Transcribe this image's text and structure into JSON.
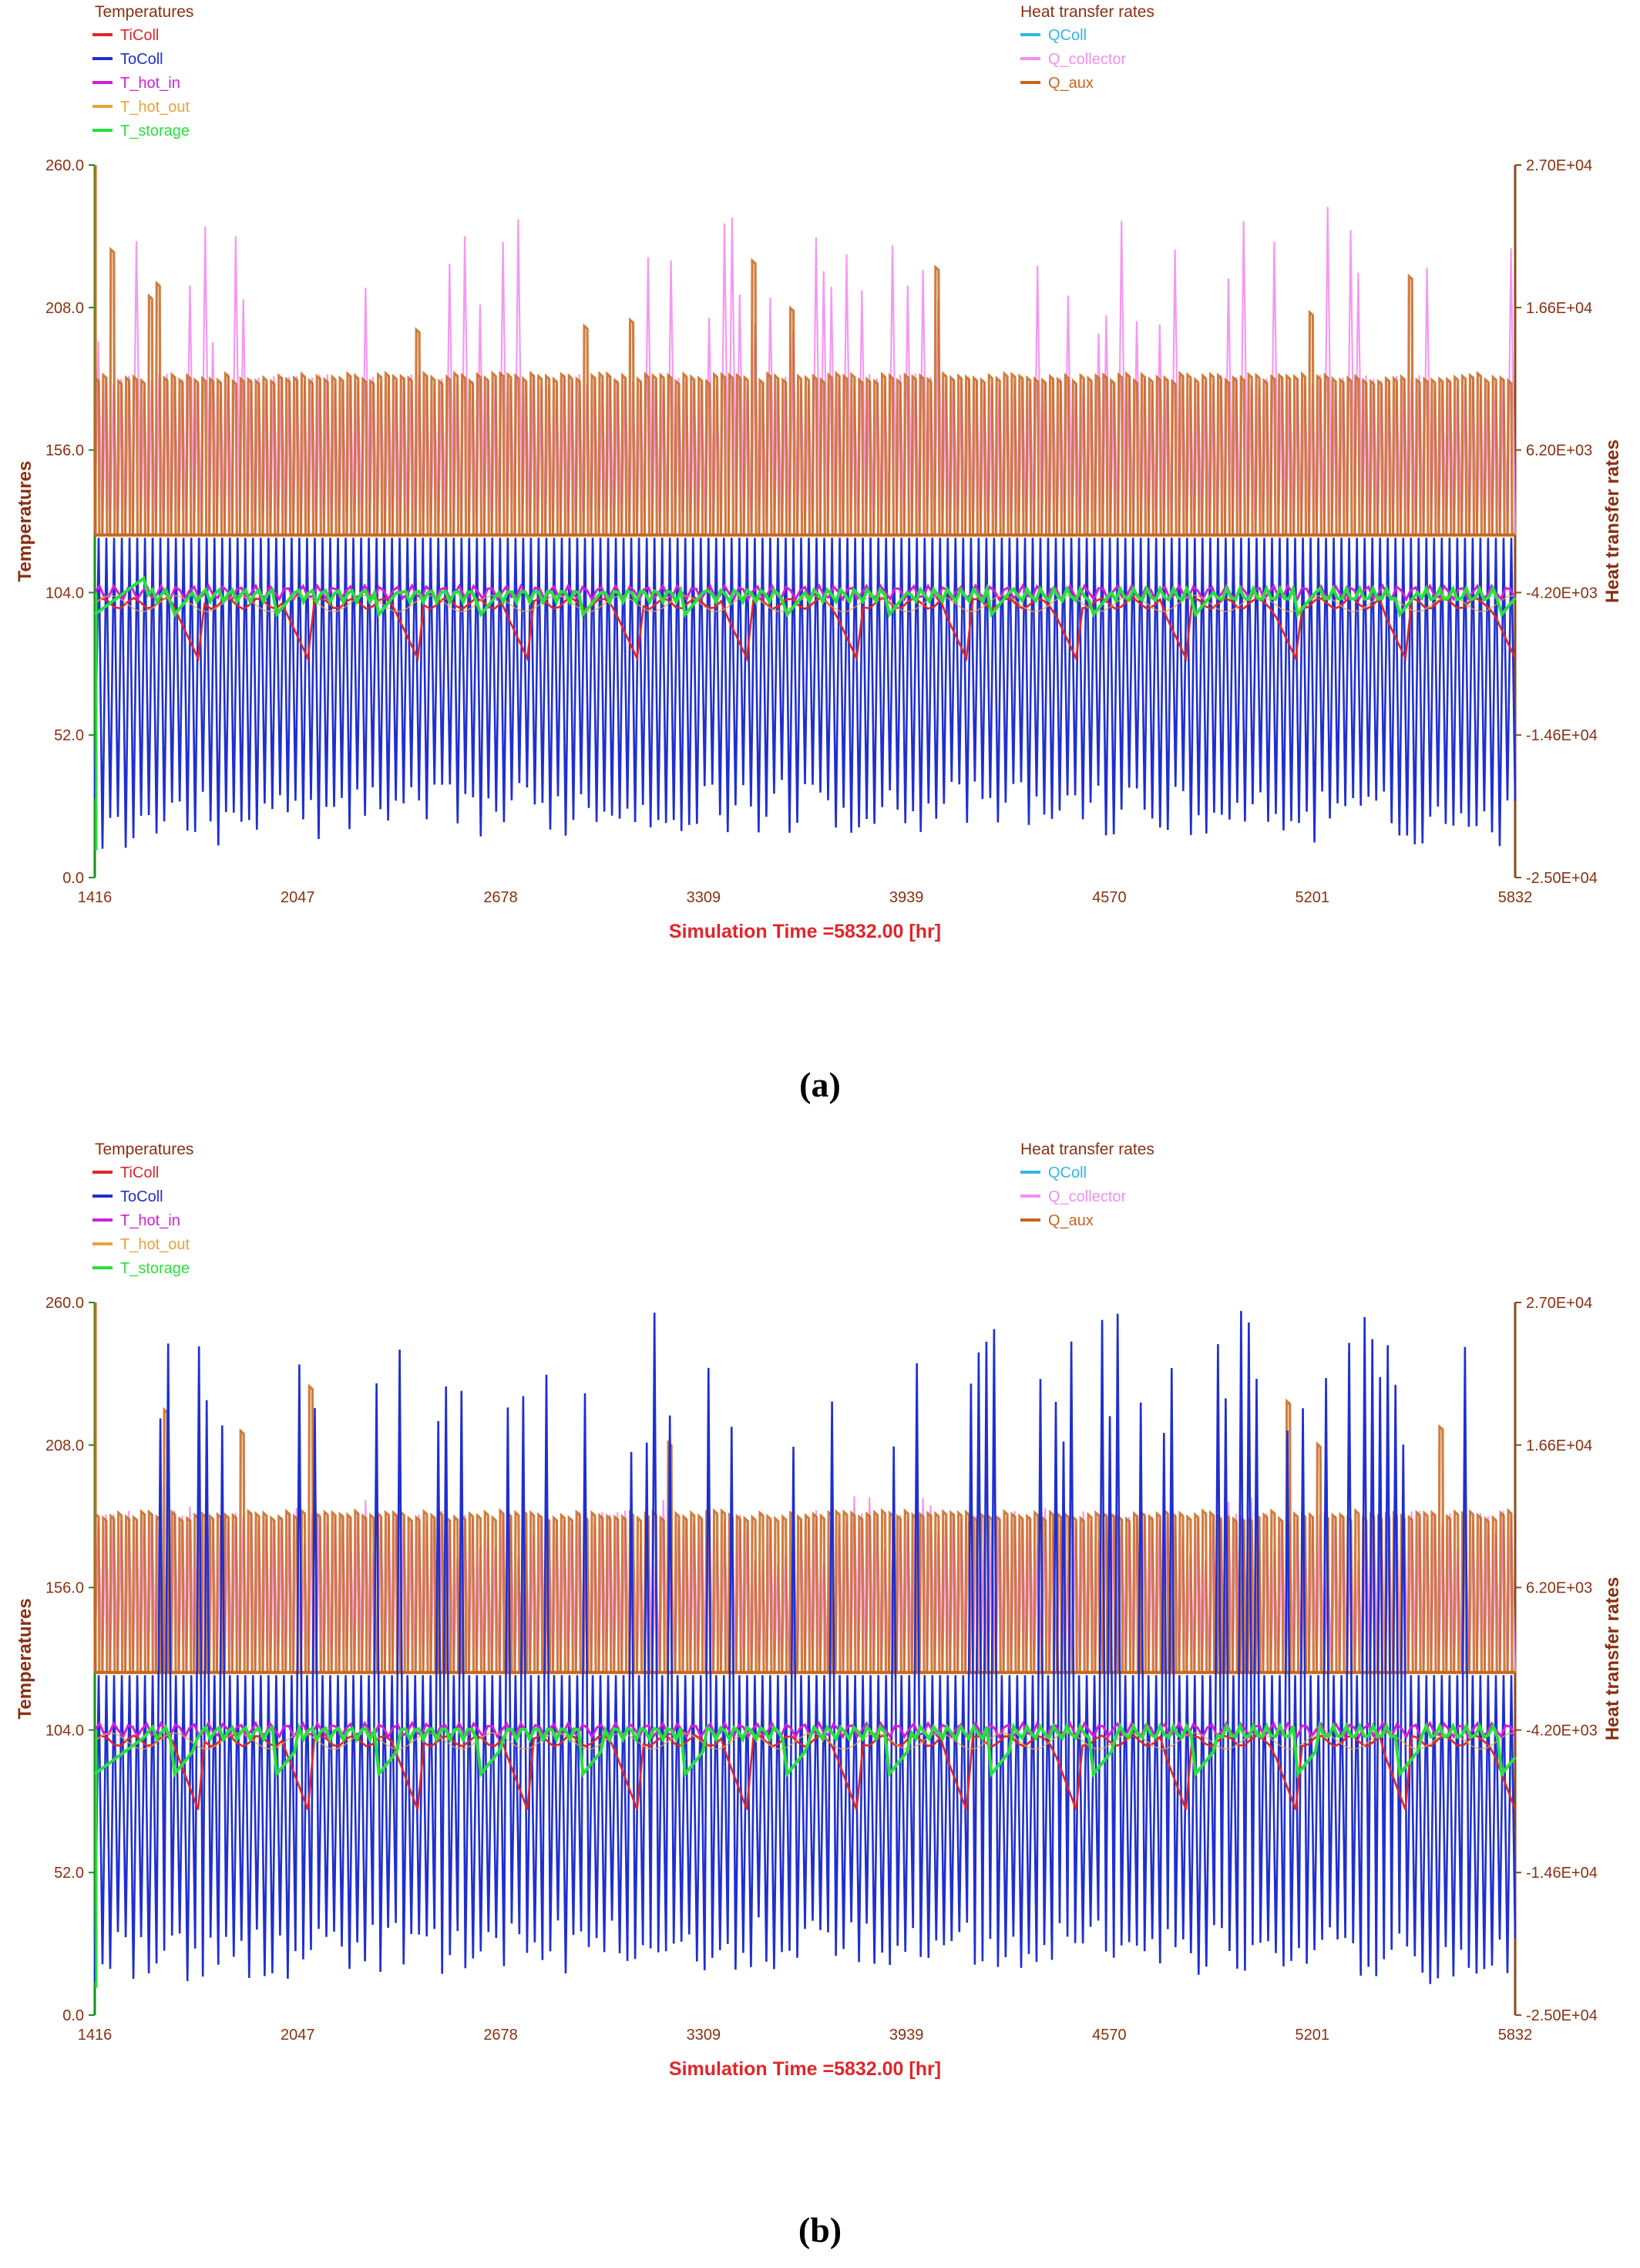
{
  "colors": {
    "TiColl": "#e0262a",
    "ToColl": "#1f2fd0",
    "T_hot_in": "#d31ed9",
    "T_hot_out": "#e7a33a",
    "T_storage": "#27e13c",
    "QColl": "#34b6e6",
    "Q_collector": "#f28ff0",
    "Q_aux": "#c8661c",
    "axis_left": "#1a8f1a",
    "axis_right": "#8e4a1a",
    "label": "#8a3010",
    "time_label": "#e0262a"
  },
  "chart_data": [
    {
      "type": "line",
      "panel": "a",
      "caption": "(a)",
      "legend_left_title": "Temperatures",
      "legend_right_title": "Heat transfer rates",
      "ylabel": "Temperatures",
      "y2label": "Heat transfer rates",
      "xlabel": "Simulation Time =5832.00 [hr]",
      "xlim": [
        1416,
        5832
      ],
      "ylim": [
        0,
        260
      ],
      "y2lim": [
        -25000,
        27000
      ],
      "xtick_labels": [
        "1416",
        "2047",
        "2678",
        "3309",
        "3939",
        "4570",
        "5201",
        "5832"
      ],
      "ytick_labels": [
        "260.0",
        "208.0",
        "156.0",
        "104.0",
        "52.0",
        "0.0"
      ],
      "y2tick_labels": [
        "2.70E+04",
        "1.66E+04",
        "6.20E+03",
        "-4.20E+03",
        "-1.46E+04",
        "-2.50E+04"
      ],
      "series": [
        {
          "name": "TiColl",
          "role": "temperature",
          "peak": 100,
          "dip": 80
        },
        {
          "name": "ToColl",
          "role": "temperature",
          "peak": 124,
          "low": [
            10,
            30
          ],
          "spikes": false
        },
        {
          "name": "T_hot_in",
          "role": "temperature",
          "level": 104
        },
        {
          "name": "T_hot_out",
          "role": "temperature",
          "level": 100
        },
        {
          "name": "T_storage",
          "role": "temperature",
          "level": [
            96,
            106
          ]
        },
        {
          "name": "QColl",
          "role": "heat",
          "level": 0
        },
        {
          "name": "Q_collector",
          "role": "heat",
          "peak_range": [
            14000,
            24000
          ]
        },
        {
          "name": "Q_aux",
          "role": "heat",
          "peak": 11500,
          "baseline": 0
        }
      ]
    },
    {
      "type": "line",
      "panel": "b",
      "caption": "(b)",
      "legend_left_title": "Temperatures",
      "legend_right_title": "Heat transfer rates",
      "ylabel": "Temperatures",
      "y2label": "Heat transfer rates",
      "xlabel": "Simulation Time =5832.00 [hr]",
      "xlim": [
        1416,
        5832
      ],
      "ylim": [
        0,
        260
      ],
      "y2lim": [
        -25000,
        27000
      ],
      "xtick_labels": [
        "1416",
        "2047",
        "2678",
        "3309",
        "3939",
        "4570",
        "5201",
        "5832"
      ],
      "ytick_labels": [
        "260.0",
        "208.0",
        "156.0",
        "104.0",
        "52.0",
        "0.0"
      ],
      "y2tick_labels": [
        "2.70E+04",
        "1.66E+04",
        "6.20E+03",
        "-4.20E+03",
        "-1.46E+04",
        "-2.50E+04"
      ],
      "series": [
        {
          "name": "TiColl",
          "role": "temperature",
          "peak": 100,
          "dip": 75
        },
        {
          "name": "ToColl",
          "role": "temperature",
          "peak": 124,
          "low": [
            10,
            30
          ],
          "spikes": true,
          "spike_range": [
            205,
            260
          ]
        },
        {
          "name": "T_hot_in",
          "role": "temperature",
          "level": 104
        },
        {
          "name": "T_hot_out",
          "role": "temperature",
          "level": 100
        },
        {
          "name": "T_storage",
          "role": "temperature",
          "level": [
            88,
            106
          ]
        },
        {
          "name": "QColl",
          "role": "heat",
          "level": 0
        },
        {
          "name": "Q_collector",
          "role": "heat",
          "peak_range": [
            8000,
            13000
          ]
        },
        {
          "name": "Q_aux",
          "role": "heat",
          "peak": 11500,
          "baseline": 0
        }
      ]
    }
  ]
}
